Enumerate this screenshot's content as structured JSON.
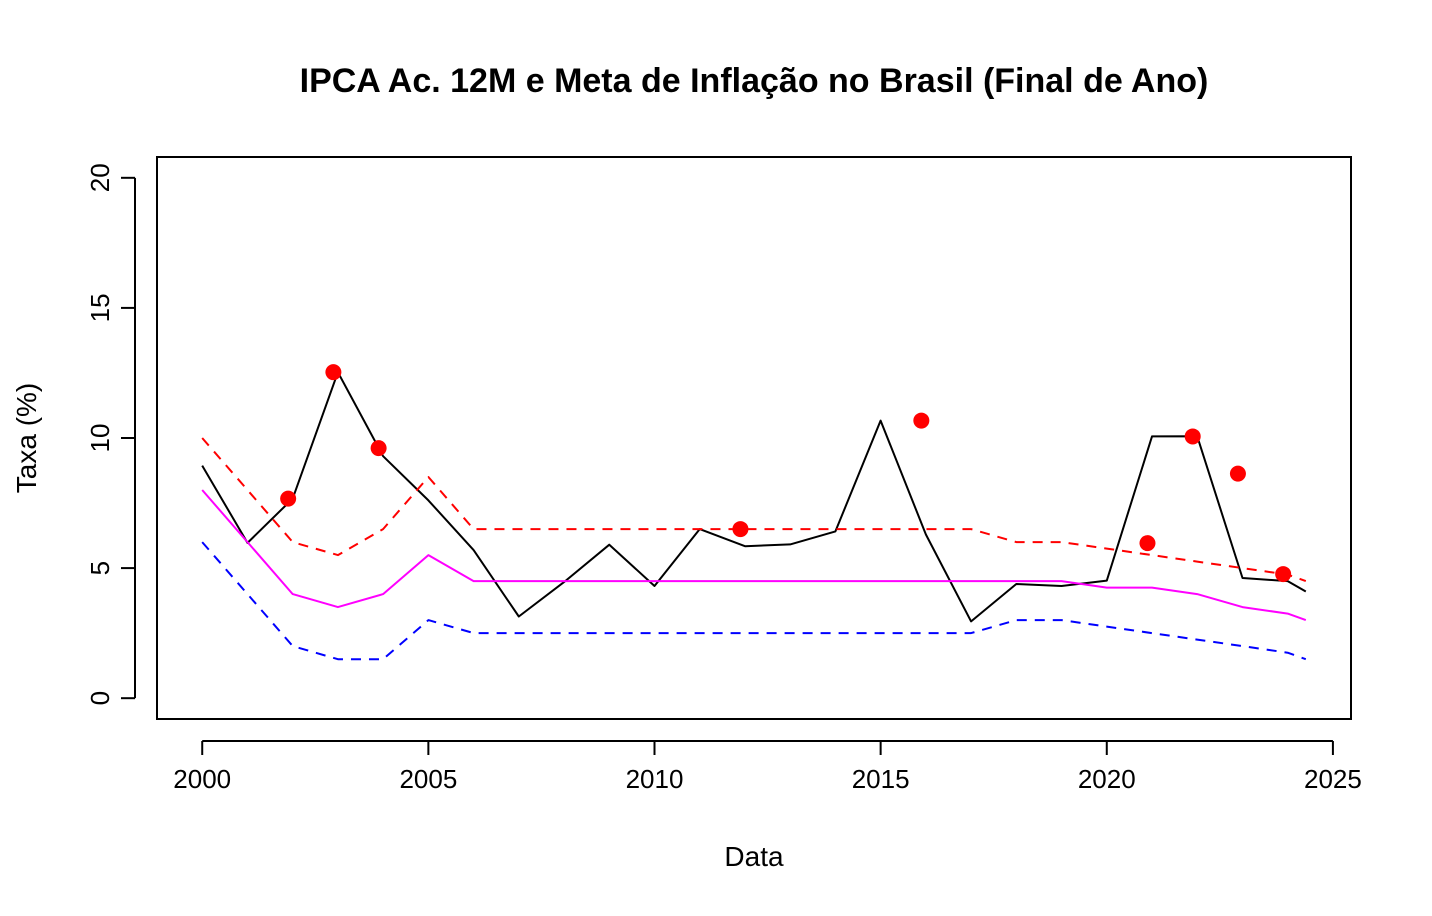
{
  "chart_data": {
    "type": "line",
    "title": "IPCA Ac. 12M e Meta de Inflação no Brasil (Final de Ano)",
    "xlabel": "Data",
    "ylabel": "Taxa (%)",
    "xlim": [
      1999.0,
      2025.4
    ],
    "ylim": [
      -0.8,
      20.8
    ],
    "xticks": [
      2000,
      2005,
      2010,
      2015,
      2020,
      2025
    ],
    "xtick_labels": [
      "2000",
      "2005",
      "2010",
      "2015",
      "2020",
      "2025"
    ],
    "yticks": [
      0,
      5,
      10,
      15,
      20
    ],
    "ytick_labels": [
      "0",
      "5",
      "10",
      "15",
      "20"
    ],
    "grid": false,
    "legend": "none",
    "series": [
      {
        "style": "solid",
        "color": "#000000",
        "x": [
          2000,
          2001,
          2002,
          2003,
          2004,
          2005,
          2006,
          2007,
          2008,
          2009,
          2010,
          2011,
          2012,
          2013,
          2014,
          2015,
          2016,
          2017,
          2018,
          2019,
          2020,
          2021,
          2022,
          2023,
          2024,
          2024.4
        ],
        "y": [
          8.94,
          5.97,
          7.67,
          12.53,
          9.3,
          7.6,
          5.69,
          3.14,
          4.46,
          5.9,
          4.31,
          6.5,
          5.84,
          5.91,
          6.41,
          10.67,
          6.29,
          2.95,
          4.39,
          4.31,
          4.52,
          10.06,
          10.07,
          4.62,
          4.5,
          4.1
        ]
      },
      {
        "style": "dashed",
        "color": "#ff0000",
        "x": [
          2000,
          2001,
          2002,
          2003,
          2004,
          2005,
          2006,
          2007,
          2008,
          2009,
          2010,
          2011,
          2012,
          2013,
          2014,
          2015,
          2016,
          2017,
          2018,
          2019,
          2020,
          2021,
          2022,
          2023,
          2024,
          2024.4
        ],
        "y": [
          10,
          8,
          6,
          5.5,
          6.5,
          8.5,
          6.5,
          6.5,
          6.5,
          6.5,
          6.5,
          6.5,
          6.5,
          6.5,
          6.5,
          6.5,
          6.5,
          6.5,
          6,
          6,
          5.75,
          5.5,
          5.25,
          5,
          4.75,
          4.5
        ]
      },
      {
        "style": "solid",
        "color": "#ff00ff",
        "x": [
          2000,
          2001,
          2002,
          2003,
          2004,
          2005,
          2006,
          2007,
          2008,
          2009,
          2010,
          2011,
          2012,
          2013,
          2014,
          2015,
          2016,
          2017,
          2018,
          2019,
          2020,
          2021,
          2022,
          2023,
          2024,
          2024.4
        ],
        "y": [
          8,
          6,
          4,
          3.5,
          4,
          5.5,
          4.5,
          4.5,
          4.5,
          4.5,
          4.5,
          4.5,
          4.5,
          4.5,
          4.5,
          4.5,
          4.5,
          4.5,
          4.5,
          4.5,
          4.25,
          4.25,
          4,
          3.5,
          3.25,
          3
        ]
      },
      {
        "style": "dashed",
        "color": "#0000ff",
        "x": [
          2000,
          2001,
          2002,
          2003,
          2004,
          2005,
          2006,
          2007,
          2008,
          2009,
          2010,
          2011,
          2012,
          2013,
          2014,
          2015,
          2016,
          2017,
          2018,
          2019,
          2020,
          2021,
          2022,
          2023,
          2024,
          2024.4
        ],
        "y": [
          6,
          4,
          2,
          1.5,
          1.5,
          3,
          2.5,
          2.5,
          2.5,
          2.5,
          2.5,
          2.5,
          2.5,
          2.5,
          2.5,
          2.5,
          2.5,
          2.5,
          3,
          3,
          2.75,
          2.5,
          2.25,
          2,
          1.75,
          1.5
        ]
      }
    ],
    "points": {
      "color": "#ff0000",
      "x": [
        2001.9,
        2002.9,
        2003.9,
        2011.9,
        2015.9,
        2020.9,
        2021.9,
        2022.9,
        2023.9
      ],
      "y": [
        7.67,
        12.53,
        9.61,
        6.5,
        10.67,
        5.96,
        10.06,
        8.63,
        4.77
      ]
    }
  }
}
